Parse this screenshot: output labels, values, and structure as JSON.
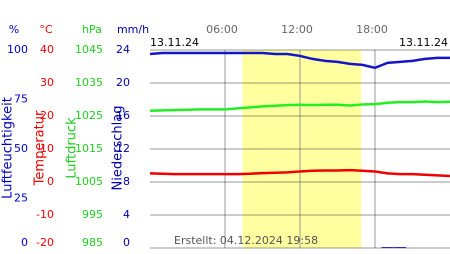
{
  "chart_data": {
    "type": "line",
    "date_left": "13.11.24",
    "date_right": "13.11.24",
    "created": "Erstellt: 04.12.2024 19:58",
    "x": [
      0,
      1,
      2,
      3,
      4,
      5,
      6,
      7,
      8,
      9,
      10,
      11,
      12,
      13,
      14,
      15,
      16,
      17,
      18,
      19,
      20,
      21,
      22,
      23,
      24
    ],
    "xlim": [
      0,
      24
    ],
    "xticks": [
      {
        "value": 6,
        "label": "06:00"
      },
      {
        "value": 12,
        "label": "12:00"
      },
      {
        "value": 18,
        "label": "18:00"
      }
    ],
    "daylight": [
      7.4,
      16.9
    ],
    "daylight_color": "#ffffa0",
    "grid": true,
    "axes": [
      {
        "unit": "%",
        "label": "Luftfeuchtigkeit",
        "color": "#0000cc",
        "ylim": [
          0,
          100
        ],
        "yticks": [
          100,
          75,
          50,
          25,
          0
        ]
      },
      {
        "unit": "°C",
        "label": "Temperatur",
        "color": "#ee0000",
        "ylim": [
          -20,
          40
        ],
        "yticks": [
          40,
          30,
          20,
          10,
          0,
          -10,
          -20
        ]
      },
      {
        "unit": "hPa",
        "label": "Luftdruck",
        "color": "#22cc22",
        "ylim": [
          985,
          1045
        ],
        "yticks": [
          1045,
          1035,
          1025,
          1015,
          1005,
          995,
          985
        ]
      },
      {
        "unit": "mm/h",
        "label": "Niederschlag",
        "color": "#0000aa",
        "ylim": [
          0,
          24
        ],
        "yticks": [
          24,
          20,
          16,
          12,
          8,
          4,
          0
        ]
      }
    ],
    "series": [
      {
        "axis": 0,
        "type": "line",
        "color": "#1515c8",
        "values": [
          98,
          98.5,
          98.5,
          98.5,
          98.5,
          98.5,
          98.5,
          98.5,
          98.5,
          98.5,
          98,
          98,
          97,
          95.5,
          94.5,
          94,
          93,
          92.5,
          91,
          93.5,
          94,
          94.5,
          95.5,
          96,
          96
        ]
      },
      {
        "axis": 1,
        "type": "line",
        "color": "#ee0000",
        "values": [
          2.6,
          2.5,
          2.4,
          2.4,
          2.4,
          2.4,
          2.4,
          2.4,
          2.5,
          2.7,
          2.8,
          2.9,
          3.2,
          3.4,
          3.5,
          3.5,
          3.6,
          3.4,
          3.2,
          2.6,
          2.4,
          2.4,
          2.2,
          2,
          1.8
        ]
      },
      {
        "axis": 2,
        "type": "line",
        "color": "#22ee22",
        "values": [
          1026.6,
          1026.7,
          1026.8,
          1026.9,
          1027,
          1027,
          1027,
          1027.3,
          1027.6,
          1027.9,
          1028.1,
          1028.3,
          1028.4,
          1028.3,
          1028.4,
          1028.4,
          1028.2,
          1028.5,
          1028.6,
          1029,
          1029.2,
          1029.2,
          1029.4,
          1029.2,
          1029.3
        ]
      },
      {
        "axis": 3,
        "type": "bar",
        "color": "#0000aa",
        "values": [
          0,
          0,
          0,
          0,
          0,
          0,
          0,
          0,
          0,
          0,
          0,
          0,
          0,
          0,
          0,
          0,
          0,
          0,
          0,
          0.1,
          0.1,
          0,
          0,
          0,
          0
        ]
      }
    ]
  }
}
